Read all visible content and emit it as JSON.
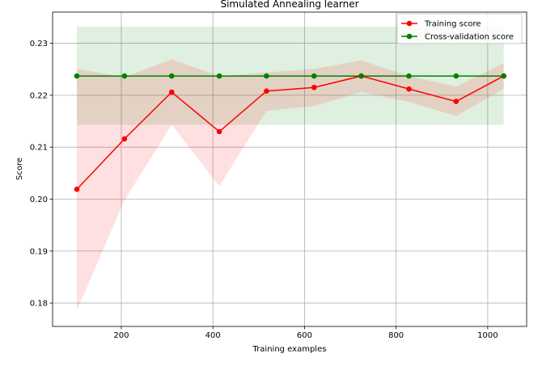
{
  "chart_data": {
    "type": "line",
    "title": "Simulated Annealing learner",
    "xlabel": "Training examples",
    "ylabel": "Score",
    "xlim": [
      50,
      1085
    ],
    "ylim": [
      0.1755,
      0.236
    ],
    "grid": true,
    "legend_position": "top-right",
    "x_ticks": [
      200,
      400,
      600,
      800,
      1000
    ],
    "y_ticks": [
      0.18,
      0.19,
      0.2,
      0.21,
      0.22,
      0.23
    ],
    "x": [
      103,
      207,
      310,
      414,
      517,
      621,
      724,
      828,
      931,
      1035
    ],
    "series": [
      {
        "name": "Training score",
        "color": "#ff0000",
        "band_color": "#ff0000",
        "values": [
          0.2019,
          0.2116,
          0.2206,
          0.213,
          0.2208,
          0.2215,
          0.2237,
          0.2212,
          0.2188,
          0.2237
        ],
        "upper": [
          0.2251,
          0.2235,
          0.2269,
          0.2237,
          0.2244,
          0.2251,
          0.2267,
          0.2237,
          0.2217,
          0.2262
        ],
        "lower": [
          0.1786,
          0.1998,
          0.2143,
          0.2025,
          0.217,
          0.2179,
          0.2206,
          0.2187,
          0.216,
          0.2212
        ]
      },
      {
        "name": "Cross-validation score",
        "color": "#008000",
        "band_color": "#008000",
        "values": [
          0.2237,
          0.2237,
          0.2237,
          0.2237,
          0.2237,
          0.2237,
          0.2237,
          0.2237,
          0.2237,
          0.2237
        ],
        "upper": [
          0.2332,
          0.2332,
          0.2332,
          0.2332,
          0.2332,
          0.2332,
          0.2332,
          0.2332,
          0.2332,
          0.2332
        ],
        "lower": [
          0.2143,
          0.2143,
          0.2143,
          0.2143,
          0.2143,
          0.2143,
          0.2143,
          0.2143,
          0.2143,
          0.2143
        ]
      }
    ]
  }
}
